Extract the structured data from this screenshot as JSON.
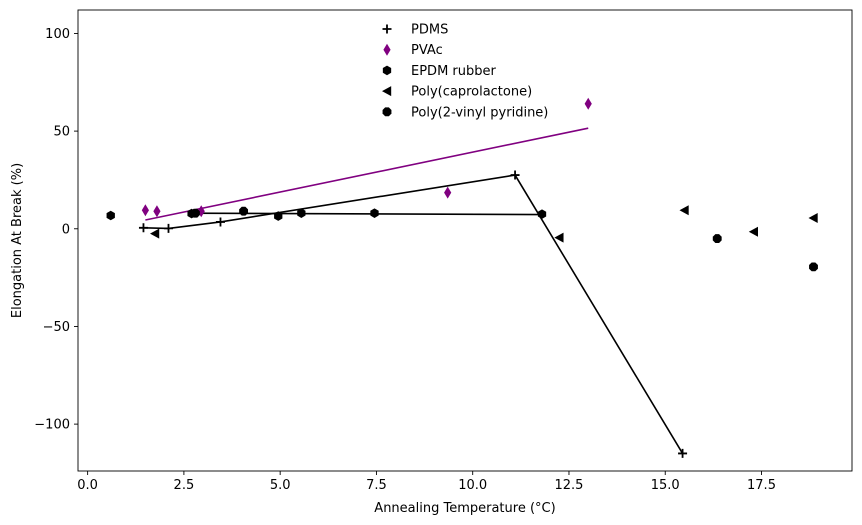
{
  "chart_data": {
    "type": "scatter",
    "title": "",
    "xlabel": "Annealing Temperature (°C)",
    "ylabel": "Elongation At Break (%)",
    "xlim": [
      -0.25,
      19.85
    ],
    "ylim": [
      -124,
      112
    ],
    "xticks": [
      0.0,
      2.5,
      5.0,
      7.5,
      10.0,
      12.5,
      15.0,
      17.5
    ],
    "xtick_labels": [
      "0.0",
      "2.5",
      "5.0",
      "7.5",
      "10.0",
      "12.5",
      "15.0",
      "17.5"
    ],
    "yticks": [
      -100,
      -50,
      0,
      50,
      100
    ],
    "ytick_labels": [
      "−100",
      "−50",
      "0",
      "50",
      "100"
    ],
    "grid": false,
    "legend_position": "top-center",
    "series": [
      {
        "name": "PDMS",
        "marker": "plus",
        "color": "#000000",
        "points": [
          [
            1.45,
            0.5
          ],
          [
            2.1,
            0.2
          ],
          [
            3.45,
            3.5
          ],
          [
            11.1,
            27.5
          ],
          [
            15.45,
            -115
          ]
        ],
        "line": [
          [
            1.45,
            0.5
          ],
          [
            2.1,
            0.2
          ],
          [
            3.45,
            3.5
          ],
          [
            11.1,
            27.5
          ],
          [
            15.45,
            -115
          ]
        ],
        "line_color": "#000000"
      },
      {
        "name": "PVAc",
        "marker": "thin_diamond",
        "color": "#800080",
        "points": [
          [
            1.5,
            9.5
          ],
          [
            1.8,
            9.0
          ],
          [
            2.95,
            9.0
          ],
          [
            9.35,
            18.5
          ],
          [
            13.0,
            64.0
          ]
        ],
        "line": [
          [
            1.5,
            4.5
          ],
          [
            13.0,
            51.5
          ]
        ],
        "line_color": "#800080"
      },
      {
        "name": "EPDM rubber",
        "marker": "hexagon",
        "color": "#000000",
        "points": [
          [
            0.6,
            6.8
          ],
          [
            2.7,
            7.8
          ],
          [
            4.95,
            6.5
          ],
          [
            5.55,
            8.0
          ],
          [
            7.45,
            8.0
          ],
          [
            11.8,
            7.5
          ]
        ],
        "line": [
          [
            2.6,
            8.0
          ],
          [
            11.8,
            7.3
          ]
        ],
        "line_color": "#000000"
      },
      {
        "name": "Poly(caprolactone)",
        "marker": "triangle_left",
        "color": "#000000",
        "points": [
          [
            1.75,
            -2.5
          ],
          [
            12.25,
            -4.5
          ],
          [
            15.5,
            9.5
          ],
          [
            17.3,
            -1.5
          ],
          [
            18.85,
            5.5
          ]
        ],
        "line": [],
        "line_color": ""
      },
      {
        "name": "Poly(2-vinyl pyridine)",
        "marker": "octagon",
        "color": "#000000",
        "points": [
          [
            2.8,
            8.0
          ],
          [
            4.05,
            9.0
          ],
          [
            16.35,
            -5.0
          ],
          [
            18.85,
            -19.5
          ]
        ],
        "line": [],
        "line_color": ""
      }
    ]
  }
}
